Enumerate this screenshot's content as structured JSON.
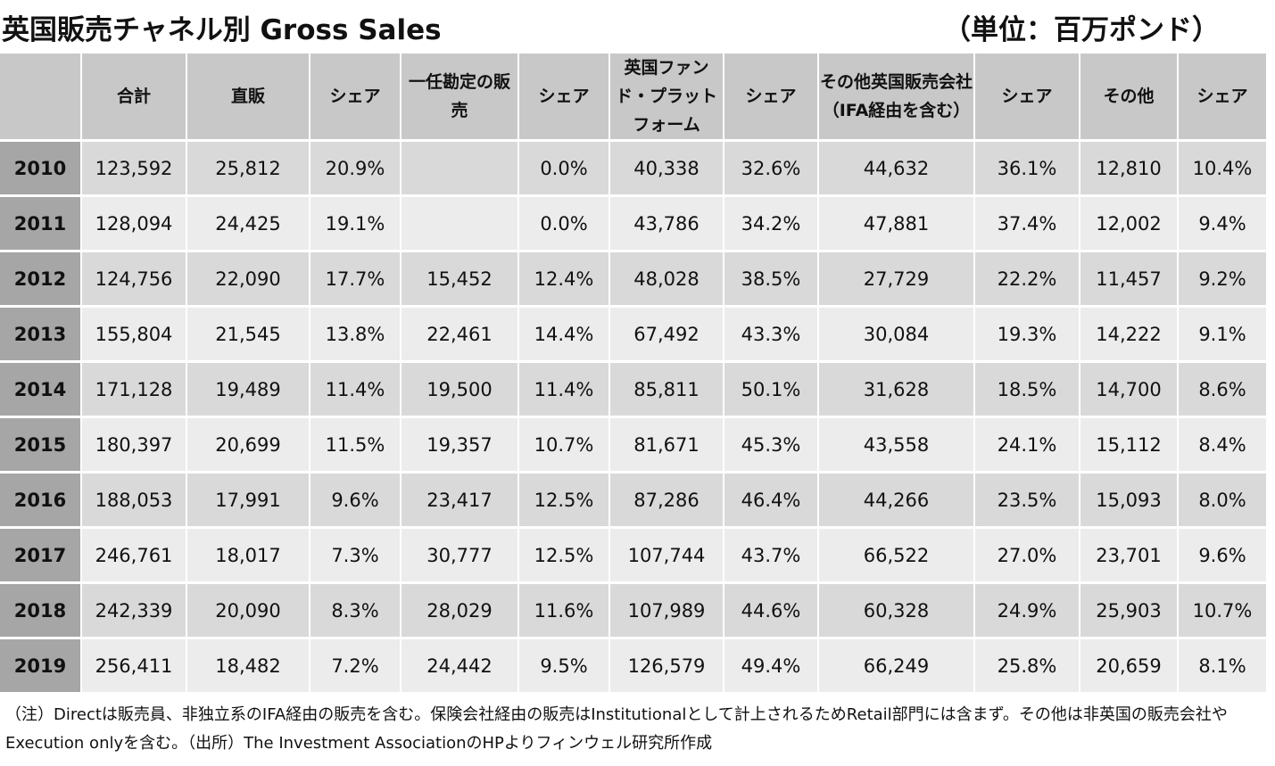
{
  "title": "英国販売チャネル別 Gross Sales",
  "unit": "（単位：百万ポンド）",
  "table": {
    "headers": [
      "",
      "合計",
      "直販",
      "シェア",
      "一任勘定の販売",
      "シェア",
      "英国ファンド・プラットフォーム",
      "シェア",
      "その他英国販売会社（IFA経由を含む）",
      "シェア",
      "その他",
      "シェア"
    ],
    "rows": [
      [
        "2010",
        "123,592",
        "25,812",
        "20.9%",
        "",
        "0.0%",
        "40,338",
        "32.6%",
        "44,632",
        "36.1%",
        "12,810",
        "10.4%"
      ],
      [
        "2011",
        "128,094",
        "24,425",
        "19.1%",
        "",
        "0.0%",
        "43,786",
        "34.2%",
        "47,881",
        "37.4%",
        "12,002",
        "9.4%"
      ],
      [
        "2012",
        "124,756",
        "22,090",
        "17.7%",
        "15,452",
        "12.4%",
        "48,028",
        "38.5%",
        "27,729",
        "22.2%",
        "11,457",
        "9.2%"
      ],
      [
        "2013",
        "155,804",
        "21,545",
        "13.8%",
        "22,461",
        "14.4%",
        "67,492",
        "43.3%",
        "30,084",
        "19.3%",
        "14,222",
        "9.1%"
      ],
      [
        "2014",
        "171,128",
        "19,489",
        "11.4%",
        "19,500",
        "11.4%",
        "85,811",
        "50.1%",
        "31,628",
        "18.5%",
        "14,700",
        "8.6%"
      ],
      [
        "2015",
        "180,397",
        "20,699",
        "11.5%",
        "19,357",
        "10.7%",
        "81,671",
        "45.3%",
        "43,558",
        "24.1%",
        "15,112",
        "8.4%"
      ],
      [
        "2016",
        "188,053",
        "17,991",
        "9.6%",
        "23,417",
        "12.5%",
        "87,286",
        "46.4%",
        "44,266",
        "23.5%",
        "15,093",
        "8.0%"
      ],
      [
        "2017",
        "246,761",
        "18,017",
        "7.3%",
        "30,777",
        "12.5%",
        "107,744",
        "43.7%",
        "66,522",
        "27.0%",
        "23,701",
        "9.6%"
      ],
      [
        "2018",
        "242,339",
        "20,090",
        "8.3%",
        "28,029",
        "11.6%",
        "107,989",
        "44.6%",
        "60,328",
        "24.9%",
        "25,903",
        "10.7%"
      ],
      [
        "2019",
        "256,411",
        "18,482",
        "7.2%",
        "24,442",
        "9.5%",
        "126,579",
        "49.4%",
        "66,249",
        "25.8%",
        "20,659",
        "8.1%"
      ]
    ]
  },
  "note": "（注）Directは販売員、非独立系のIFA経由の販売を含む。保険会社経由の販売はInstitutionalとして計上されるためRetail部門には含まず。その他は非英国の販売会社やExecution onlyを含む。（出所）The Investment AssociationのHPよりフィンウェル研究所作成"
}
